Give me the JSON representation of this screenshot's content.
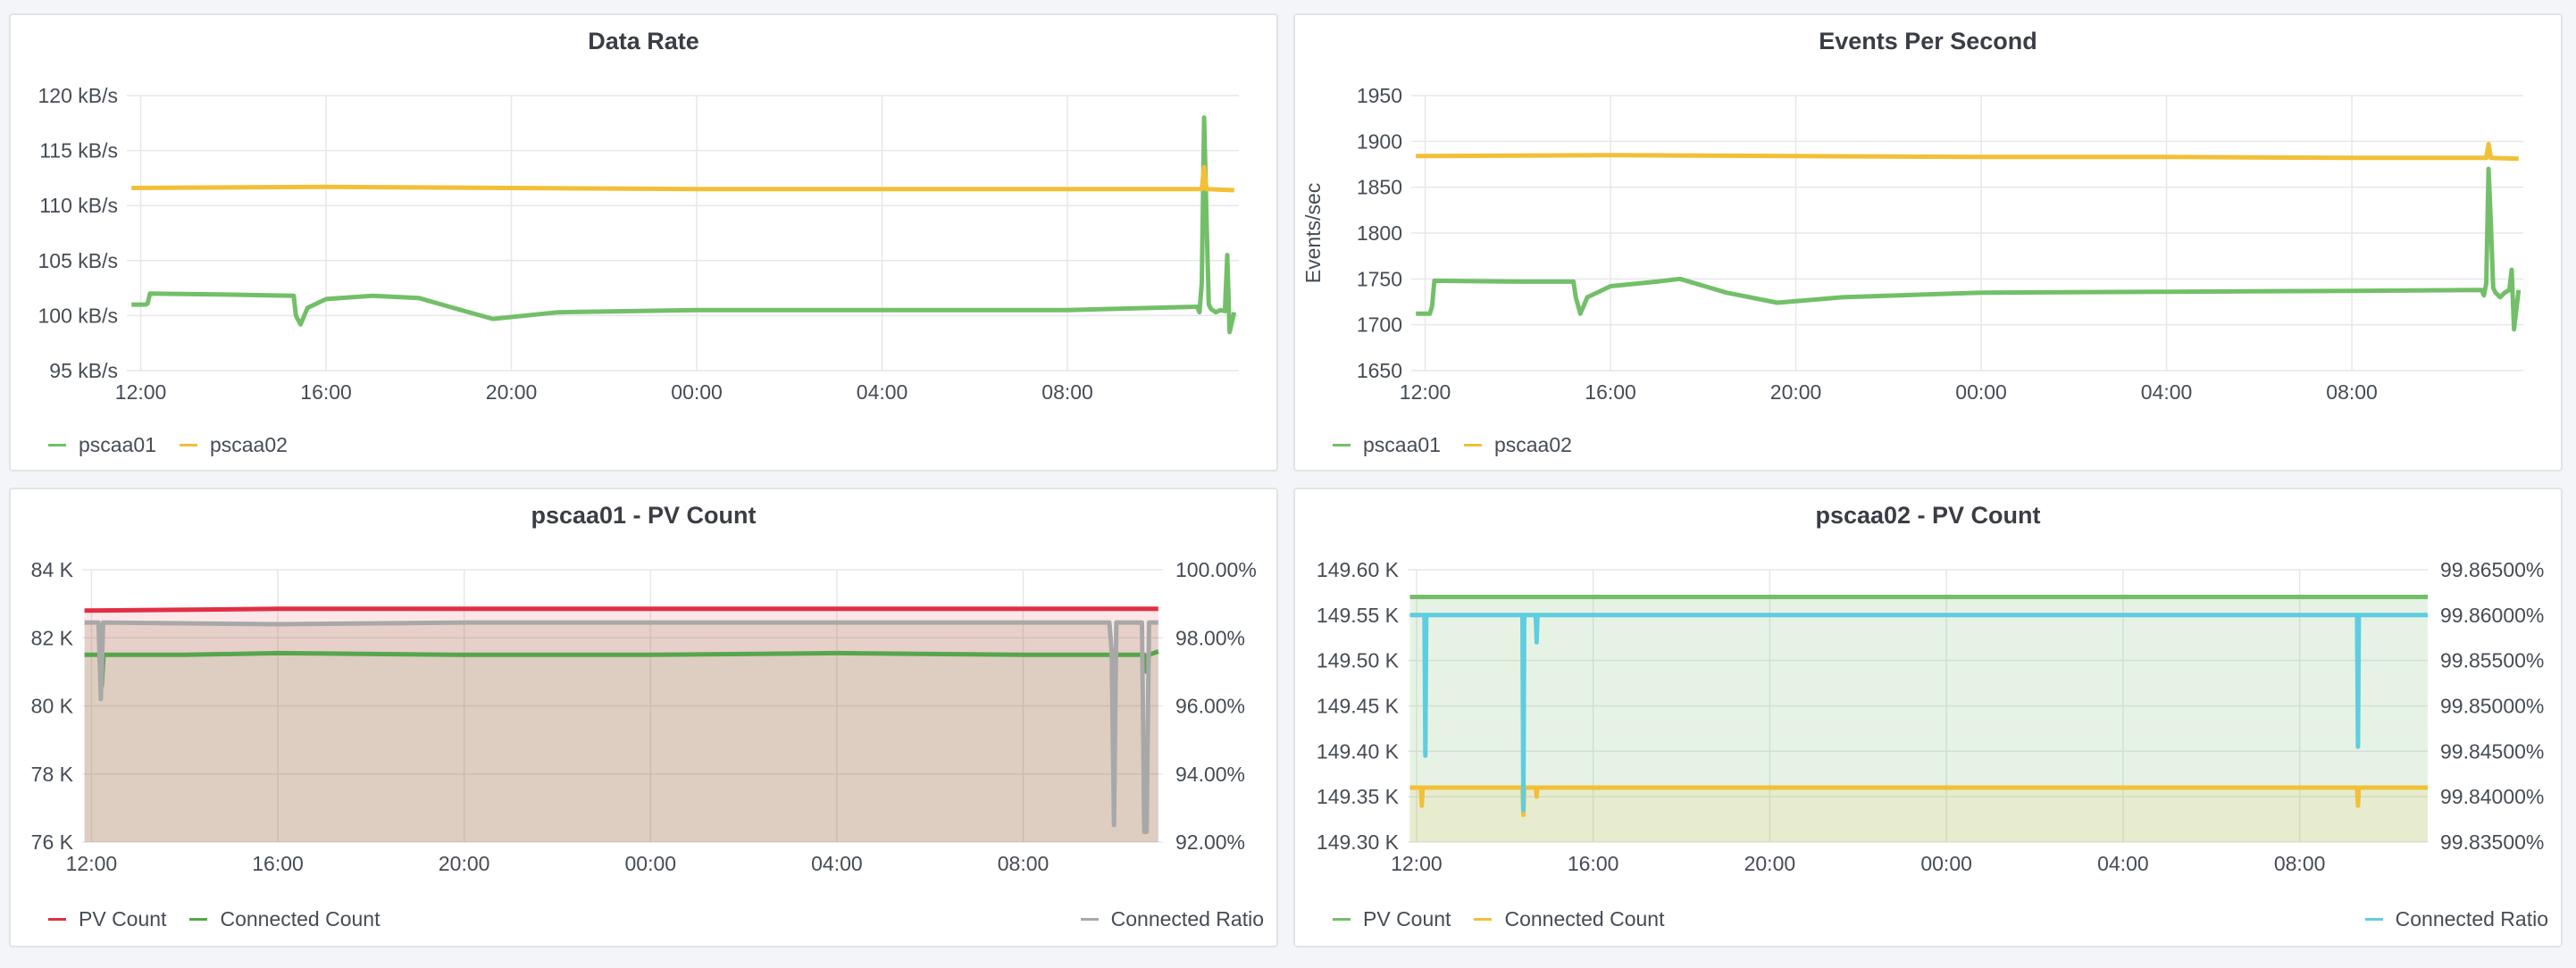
{
  "panels": [
    {
      "id": "data-rate",
      "title": "Data Rate",
      "legend_right": false
    },
    {
      "id": "events-per-second",
      "title": "Events Per Second",
      "legend_right": false
    },
    {
      "id": "pscaa01-pv-count",
      "title": "pscaa01 - PV Count",
      "legend_right": true
    },
    {
      "id": "pscaa02-pv-count",
      "title": "pscaa02 - PV Count",
      "legend_right": true
    }
  ],
  "colors": {
    "green": "#73bf69",
    "yellow": "#f2c037",
    "red": "#e02f44",
    "gray": "#a8a8a8",
    "cyan": "#5fcde0",
    "darkgreen": "#56a64b",
    "grid": "#e6e7ea"
  },
  "chart_data": [
    {
      "type": "line",
      "title": "Data Rate",
      "xlabel": "",
      "ylabel": "",
      "x_ticks": [
        "12:00",
        "16:00",
        "20:00",
        "00:00",
        "04:00",
        "08:00"
      ],
      "x_range_hours": [
        -0.3,
        23.7
      ],
      "ylim": [
        95,
        120
      ],
      "y_ticks": [
        "95 kB/s",
        "100 kB/s",
        "105 kB/s",
        "110 kB/s",
        "115 kB/s",
        "120 kB/s"
      ],
      "y_tick_values": [
        95,
        100,
        105,
        110,
        115,
        120
      ],
      "legend": [
        "pscaa01",
        "pscaa02"
      ],
      "series": [
        {
          "name": "pscaa01",
          "color": "#73bf69",
          "x": [
            -0.2,
            0.1,
            0.15,
            0.2,
            2,
            3.3,
            3.35,
            3.45,
            3.6,
            4,
            5,
            6,
            7,
            7.6,
            9,
            12,
            16,
            20,
            22.8,
            22.85,
            22.9,
            22.95,
            23.0,
            23.05,
            23.1,
            23.2,
            23.3,
            23.4,
            23.45,
            23.5,
            23.6
          ],
          "y": [
            101,
            101,
            101.1,
            102,
            101.9,
            101.8,
            100,
            99.2,
            100.7,
            101.5,
            101.8,
            101.6,
            100.4,
            99.7,
            100.3,
            100.5,
            100.5,
            100.5,
            100.8,
            100.3,
            103,
            118,
            109,
            101,
            100.6,
            100.3,
            100.5,
            100.4,
            105.5,
            98.5,
            100.3
          ]
        },
        {
          "name": "pscaa02",
          "color": "#f2c037",
          "x": [
            -0.2,
            4,
            8,
            12,
            16,
            20,
            22.8,
            22.9,
            22.95,
            23.0,
            23.6
          ],
          "y": [
            111.6,
            111.7,
            111.6,
            111.5,
            111.5,
            111.5,
            111.5,
            111.5,
            113.5,
            111.5,
            111.4
          ]
        }
      ]
    },
    {
      "type": "line",
      "title": "Events Per Second",
      "xlabel": "",
      "ylabel": "Events/sec",
      "x_ticks": [
        "12:00",
        "16:00",
        "20:00",
        "00:00",
        "04:00",
        "08:00"
      ],
      "x_range_hours": [
        -0.3,
        23.7
      ],
      "ylim": [
        1650,
        1950
      ],
      "y_ticks": [
        "1650",
        "1700",
        "1750",
        "1800",
        "1850",
        "1900",
        "1950"
      ],
      "y_tick_values": [
        1650,
        1700,
        1750,
        1800,
        1850,
        1900,
        1950
      ],
      "legend": [
        "pscaa01",
        "pscaa02"
      ],
      "series": [
        {
          "name": "pscaa01",
          "color": "#73bf69",
          "x": [
            -0.2,
            0.1,
            0.15,
            0.2,
            2,
            3.2,
            3.25,
            3.35,
            3.5,
            4,
            5,
            5.5,
            6.5,
            7.6,
            9,
            12,
            16,
            20,
            22.8,
            22.85,
            22.9,
            22.95,
            23.0,
            23.05,
            23.1,
            23.2,
            23.3,
            23.4,
            23.45,
            23.5,
            23.6
          ],
          "y": [
            1712,
            1712,
            1720,
            1748,
            1747,
            1747,
            1730,
            1712,
            1730,
            1742,
            1747,
            1750,
            1735,
            1724,
            1730,
            1735,
            1736,
            1737,
            1738,
            1732,
            1745,
            1870,
            1810,
            1740,
            1735,
            1730,
            1735,
            1738,
            1760,
            1695,
            1738
          ]
        },
        {
          "name": "pscaa02",
          "color": "#f2c037",
          "x": [
            -0.2,
            4,
            8,
            12,
            16,
            20,
            22.8,
            22.9,
            22.95,
            23.0,
            23.6
          ],
          "y": [
            1884,
            1885,
            1884,
            1883,
            1883,
            1882,
            1882,
            1882,
            1897,
            1882,
            1881
          ]
        }
      ]
    },
    {
      "type": "area",
      "title": "pscaa01 - PV Count",
      "xlabel": "",
      "ylabel": "",
      "x_ticks": [
        "12:00",
        "16:00",
        "20:00",
        "00:00",
        "04:00",
        "08:00"
      ],
      "x_range_hours": [
        -0.2,
        23
      ],
      "ylim": [
        76,
        84
      ],
      "y_ticks": [
        "76 K",
        "78 K",
        "80 K",
        "82 K",
        "84 K"
      ],
      "y_tick_values": [
        76,
        78,
        80,
        82,
        84
      ],
      "y2lim": [
        92,
        100
      ],
      "y2_ticks": [
        "92.00%",
        "94.00%",
        "96.00%",
        "98.00%",
        "100.00%"
      ],
      "y2_tick_values": [
        92,
        94,
        96,
        98,
        100
      ],
      "legend": [
        "PV Count",
        "Connected Count"
      ],
      "legend_right": [
        "Connected Ratio"
      ],
      "series": [
        {
          "name": "PV Count",
          "color": "#e02f44",
          "axis": "left",
          "x": [
            -0.15,
            4,
            8,
            12,
            16,
            20,
            22.9
          ],
          "y": [
            82.8,
            82.85,
            82.85,
            82.85,
            82.85,
            82.85,
            82.85
          ]
        },
        {
          "name": "Connected Count",
          "color": "#56a64b",
          "axis": "left",
          "x": [
            -0.15,
            0.1,
            0.18,
            0.22,
            0.26,
            2,
            4,
            8,
            12,
            16,
            20,
            21.9,
            21.95,
            22.0,
            22.6,
            22.65,
            22.7,
            22.9
          ],
          "y": [
            81.5,
            81.5,
            81.5,
            80.6,
            81.5,
            81.5,
            81.55,
            81.5,
            81.5,
            81.55,
            81.5,
            81.5,
            81.2,
            81.5,
            81.5,
            81.0,
            81.5,
            81.6
          ]
        },
        {
          "name": "Connected Ratio",
          "color": "#a8a8a8",
          "axis": "right",
          "x": [
            -0.15,
            0.15,
            0.2,
            0.25,
            4,
            8,
            12,
            16,
            20,
            21.85,
            21.9,
            21.95,
            22.0,
            22.55,
            22.6,
            22.65,
            22.7,
            22.9
          ],
          "y": [
            98.45,
            98.45,
            96.2,
            98.45,
            98.4,
            98.45,
            98.45,
            98.45,
            98.45,
            98.45,
            97.6,
            92.5,
            98.45,
            98.45,
            92.3,
            92.3,
            98.45,
            98.45
          ]
        }
      ]
    },
    {
      "type": "area",
      "title": "pscaa02 - PV Count",
      "xlabel": "",
      "ylabel": "",
      "x_ticks": [
        "12:00",
        "16:00",
        "20:00",
        "00:00",
        "04:00",
        "08:00"
      ],
      "x_range_hours": [
        -0.2,
        22.9
      ],
      "ylim": [
        149.3,
        149.6
      ],
      "y_ticks": [
        "149.30 K",
        "149.35 K",
        "149.40 K",
        "149.45 K",
        "149.50 K",
        "149.55 K",
        "149.60 K"
      ],
      "y_tick_values": [
        149.3,
        149.35,
        149.4,
        149.45,
        149.5,
        149.55,
        149.6
      ],
      "y2lim": [
        99.835,
        99.865
      ],
      "y2_ticks": [
        "99.83500%",
        "99.84000%",
        "99.84500%",
        "99.85000%",
        "99.85500%",
        "99.86000%",
        "99.86500%"
      ],
      "y2_tick_values": [
        99.835,
        99.84,
        99.845,
        99.85,
        99.855,
        99.86,
        99.865
      ],
      "legend": [
        "PV Count",
        "Connected Count"
      ],
      "legend_right": [
        "Connected Ratio"
      ],
      "series": [
        {
          "name": "PV Count",
          "color": "#73bf69",
          "axis": "left",
          "x": [
            -0.15,
            22.9
          ],
          "y": [
            149.57,
            149.57
          ]
        },
        {
          "name": "Connected Count",
          "color": "#f2c037",
          "axis": "left",
          "x": [
            -0.15,
            0.1,
            0.12,
            0.14,
            2.4,
            2.42,
            2.44,
            2.7,
            2.72,
            2.74,
            21.3,
            21.32,
            21.34,
            22.9
          ],
          "y": [
            149.36,
            149.36,
            149.34,
            149.36,
            149.36,
            149.33,
            149.36,
            149.36,
            149.35,
            149.36,
            149.36,
            149.34,
            149.36,
            149.36
          ]
        },
        {
          "name": "Connected Ratio",
          "color": "#5fcde0",
          "axis": "right",
          "x": [
            -0.15,
            0.18,
            0.2,
            0.22,
            2.4,
            2.42,
            2.44,
            2.7,
            2.72,
            2.74,
            21.3,
            21.32,
            21.34,
            22.9
          ],
          "y": [
            99.86,
            99.86,
            99.8445,
            99.86,
            99.86,
            99.8385,
            99.86,
            99.86,
            99.857,
            99.86,
            99.86,
            99.8455,
            99.86,
            99.86
          ]
        }
      ]
    }
  ]
}
